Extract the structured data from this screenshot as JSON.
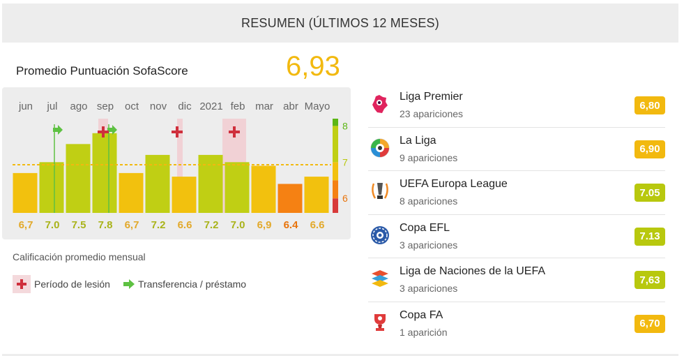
{
  "header": {
    "title": "RESUMEN (ÚLTIMOS 12 MESES)"
  },
  "average": {
    "label": "Promedio Puntuación SofaScore",
    "value": "6,93",
    "color": "#f2b90f"
  },
  "chart_data": {
    "type": "bar",
    "categories": [
      "jun",
      "jul",
      "ago",
      "sep",
      "oct",
      "nov",
      "dic",
      "2021",
      "feb",
      "mar",
      "abr",
      "Mayo"
    ],
    "values": [
      6.7,
      7.0,
      7.5,
      7.8,
      6.7,
      7.2,
      6.6,
      7.2,
      7.0,
      6.9,
      6.4,
      6.6
    ],
    "value_labels": [
      "6,7",
      "7.0",
      "7.5",
      "7.8",
      "6,7",
      "7.2",
      "6.6",
      "7.2",
      "7.0",
      "6,9",
      "6.4",
      "6.6"
    ],
    "bar_colors": [
      "#f2c10e",
      "#c0cf14",
      "#c0cf14",
      "#c0cf14",
      "#f2c10e",
      "#c0cf14",
      "#f2c10e",
      "#c0cf14",
      "#c0cf14",
      "#f2c10e",
      "#f58113",
      "#f2c10e"
    ],
    "label_colors": [
      "#e2a92b",
      "#a9b31a",
      "#a9b31a",
      "#a9b31a",
      "#e2a92b",
      "#a9b31a",
      "#e2a92b",
      "#a9b31a",
      "#a9b31a",
      "#e2a92b",
      "#e8730b",
      "#e2a92b"
    ],
    "ylim": [
      5.6,
      8.2
    ],
    "y_ticks": [
      6,
      7,
      8
    ],
    "average_line": 6.93,
    "injury_months": [
      "sep",
      "dic",
      "feb"
    ],
    "transfer_months": [
      "jul",
      "sep"
    ],
    "scale_colors": [
      "#d83a3a",
      "#f58113",
      "#f2c10e",
      "#c0cf14",
      "#5cb615"
    ]
  },
  "chart_caption": "Calificación promedio mensual",
  "legend": {
    "injury": "Período de lesión",
    "transfer": "Transferencia / préstamo"
  },
  "competitions": [
    {
      "name": "Liga Premier",
      "apps": "23 apariciones",
      "rating": "6,80",
      "color": "#f2b90f",
      "icon": "premier-league-icon"
    },
    {
      "name": "La Liga",
      "apps": "9 apariciones",
      "rating": "6,90",
      "color": "#f2b90f",
      "icon": "laliga-icon"
    },
    {
      "name": "UEFA Europa League",
      "apps": "8 apariciones",
      "rating": "7.05",
      "color": "#b8c80e",
      "icon": "europa-league-icon"
    },
    {
      "name": "Copa EFL",
      "apps": "3 apariciones",
      "rating": "7.13",
      "color": "#b8c80e",
      "icon": "efl-cup-icon"
    },
    {
      "name": "Liga de Naciones de la UEFA",
      "apps": "3 apariciones",
      "rating": "7,63",
      "color": "#b8c80e",
      "icon": "nations-league-icon"
    },
    {
      "name": "Copa FA",
      "apps": "1 aparición",
      "rating": "6,70",
      "color": "#f2b90f",
      "icon": "fa-cup-icon"
    }
  ]
}
